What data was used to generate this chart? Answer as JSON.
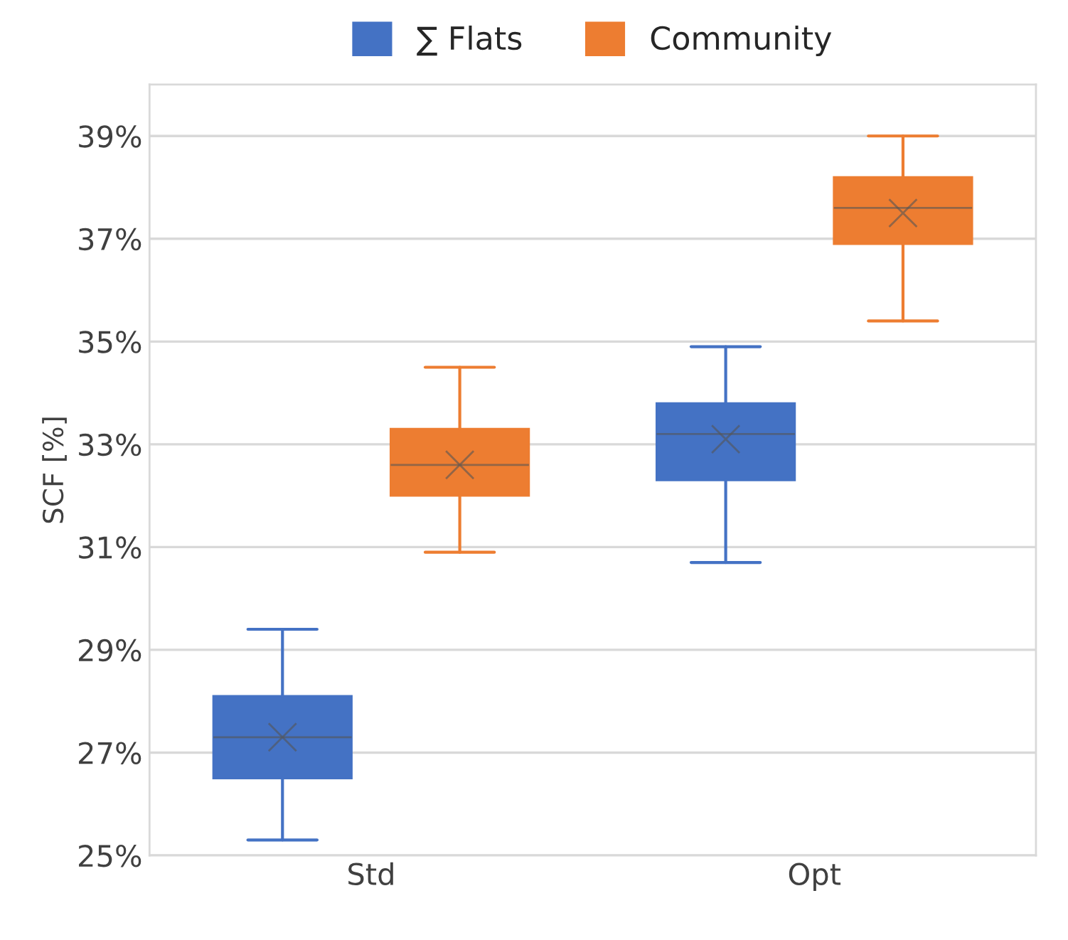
{
  "chart_data": {
    "type": "box",
    "ylabel": "SCF [%]",
    "categories": [
      "Std",
      "Opt"
    ],
    "series": [
      {
        "name": "∑ Flats",
        "color": "#4472c4",
        "boxes": [
          {
            "low": 25.3,
            "q1": 26.5,
            "median": 27.3,
            "q3": 28.1,
            "high": 29.4,
            "mean": 27.3
          },
          {
            "low": 30.7,
            "q1": 32.3,
            "median": 33.2,
            "q3": 33.8,
            "high": 34.9,
            "mean": 33.1
          }
        ]
      },
      {
        "name": "Community",
        "color": "#ed7d31",
        "boxes": [
          {
            "low": 30.9,
            "q1": 32.0,
            "median": 32.6,
            "q3": 33.3,
            "high": 34.5,
            "mean": 32.6
          },
          {
            "low": 35.4,
            "q1": 36.9,
            "median": 37.6,
            "q3": 38.2,
            "high": 39.0,
            "mean": 37.5
          }
        ]
      }
    ],
    "ylim": [
      25,
      40
    ],
    "yticks": [
      {
        "value": 25,
        "label": "25%"
      },
      {
        "value": 27,
        "label": "27%"
      },
      {
        "value": 29,
        "label": "29%"
      },
      {
        "value": 31,
        "label": "31%"
      },
      {
        "value": 33,
        "label": "33%"
      },
      {
        "value": 35,
        "label": "35%"
      },
      {
        "value": 37,
        "label": "37%"
      },
      {
        "value": 39,
        "label": "39%"
      }
    ],
    "grid": "y",
    "legend": "top"
  }
}
